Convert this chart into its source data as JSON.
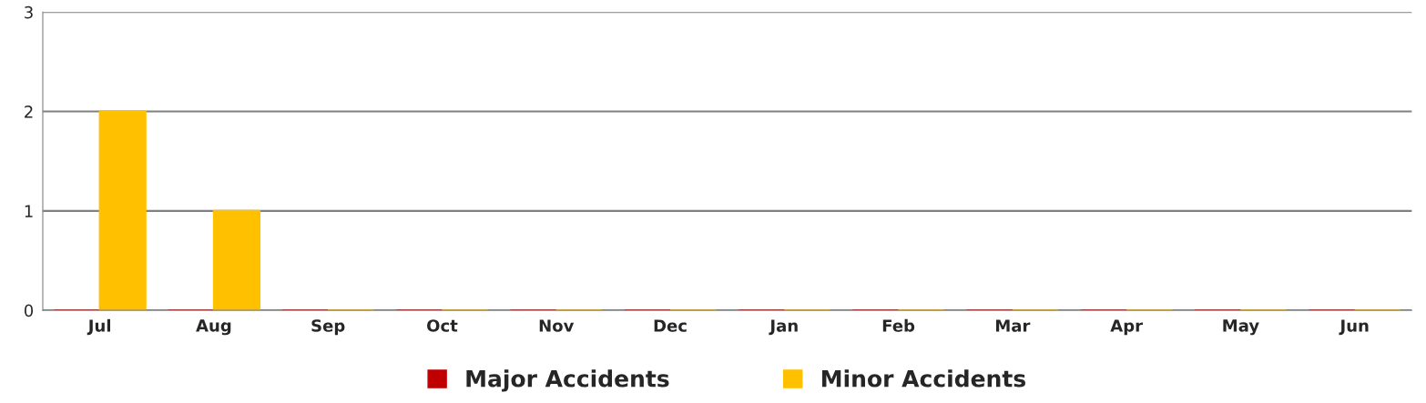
{
  "chart_data": {
    "type": "bar",
    "categories": [
      "Jul",
      "Aug",
      "Sep",
      "Oct",
      "Nov",
      "Dec",
      "Jan",
      "Feb",
      "Mar",
      "Apr",
      "May",
      "Jun"
    ],
    "series": [
      {
        "name": "Major Accidents",
        "color": "#c00000",
        "values": [
          0,
          0,
          0,
          0,
          0,
          0,
          0,
          0,
          0,
          0,
          0,
          0
        ]
      },
      {
        "name": "Minor Accidents",
        "color": "#ffc000",
        "values": [
          2,
          1,
          0,
          0,
          0,
          0,
          0,
          0,
          0,
          0,
          0,
          0
        ]
      }
    ],
    "ylim": [
      0,
      3
    ],
    "yticks": [
      0,
      1,
      2,
      3
    ],
    "grid": "y",
    "legend": "bottom"
  }
}
